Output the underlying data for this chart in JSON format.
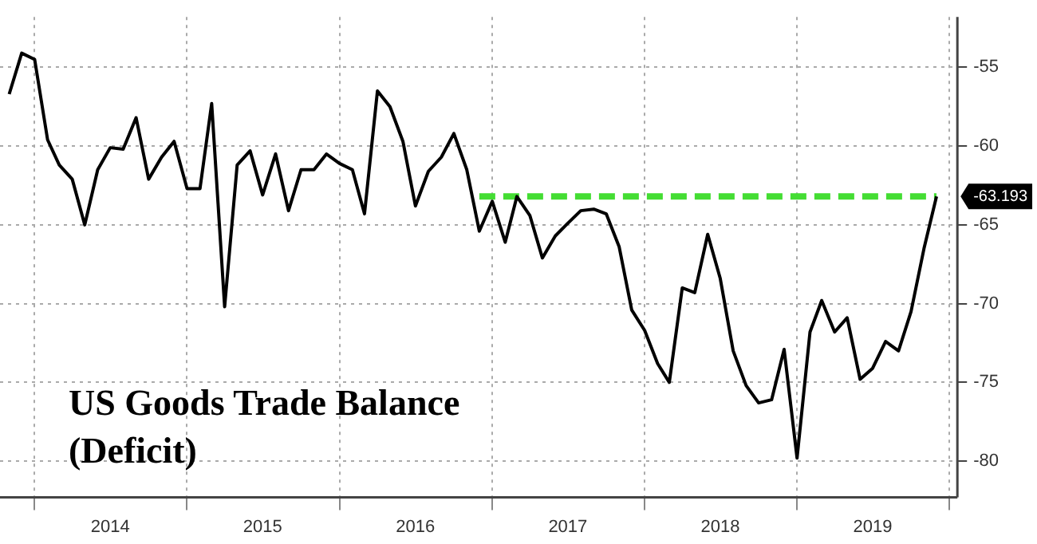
{
  "chart_data": {
    "type": "line",
    "title": "US Goods Trade Balance (Deficit)",
    "x": [
      "2013-11",
      "2013-12",
      "2014-01",
      "2014-02",
      "2014-03",
      "2014-04",
      "2014-05",
      "2014-06",
      "2014-07",
      "2014-08",
      "2014-09",
      "2014-10",
      "2014-11",
      "2014-12",
      "2015-01",
      "2015-02",
      "2015-03",
      "2015-04",
      "2015-05",
      "2015-06",
      "2015-07",
      "2015-08",
      "2015-09",
      "2015-10",
      "2015-11",
      "2015-12",
      "2016-01",
      "2016-02",
      "2016-03",
      "2016-04",
      "2016-05",
      "2016-06",
      "2016-07",
      "2016-08",
      "2016-09",
      "2016-10",
      "2016-11",
      "2016-12",
      "2017-01",
      "2017-02",
      "2017-03",
      "2017-04",
      "2017-05",
      "2017-06",
      "2017-07",
      "2017-08",
      "2017-09",
      "2017-10",
      "2017-11",
      "2017-12",
      "2018-01",
      "2018-02",
      "2018-03",
      "2018-04",
      "2018-05",
      "2018-06",
      "2018-07",
      "2018-08",
      "2018-09",
      "2018-10",
      "2018-11",
      "2018-12",
      "2019-01",
      "2019-02",
      "2019-03",
      "2019-04",
      "2019-05",
      "2019-06",
      "2019-07",
      "2019-08",
      "2019-09",
      "2019-10",
      "2019-11",
      "2019-12"
    ],
    "series": [
      {
        "color": "#000000",
        "values": [
          -56.7,
          -54.1,
          -54.5,
          -59.6,
          -61.2,
          -62.1,
          -65.0,
          -61.5,
          -60.1,
          -60.2,
          -58.2,
          -62.1,
          -60.7,
          -59.7,
          -62.7,
          -62.7,
          -57.3,
          -70.2,
          -61.2,
          -60.3,
          -63.1,
          -60.5,
          -64.1,
          -61.5,
          -61.5,
          -60.5,
          -61.1,
          -61.5,
          -64.3,
          -56.5,
          -57.5,
          -59.7,
          -63.8,
          -61.6,
          -60.7,
          -59.2,
          -61.5,
          -65.4,
          -63.5,
          -66.1,
          -63.2,
          -64.4,
          -67.1,
          -65.7,
          -64.9,
          -64.1,
          -64.0,
          -64.3,
          -66.4,
          -70.4,
          -71.7,
          -73.8,
          -75.0,
          -69.0,
          -69.3,
          -65.6,
          -68.4,
          -73.0,
          -75.2,
          -76.3,
          -76.1,
          -72.9,
          -79.8,
          -71.8,
          -69.8,
          -71.8,
          -70.9,
          -74.8,
          -74.1,
          -72.4,
          -73.0,
          -70.5,
          -66.5,
          -63.193
        ]
      },
      {
        "type": "line",
        "color": "#44dd33",
        "line_style": "dashed",
        "x": [
          "2016-12",
          "2019-12"
        ],
        "values": [
          -63.193,
          -63.193
        ]
      }
    ],
    "annotations": [
      {
        "text": "-63.193",
        "x": "2019-12",
        "y": -63.193
      }
    ],
    "xlim": [
      "2013-10-10",
      "2020-01-20"
    ],
    "xticks": [
      {
        "value": "2014-01",
        "label": null
      },
      {
        "value": "2014-07",
        "label": "2014"
      },
      {
        "value": "2015-01",
        "label": null
      },
      {
        "value": "2015-07",
        "label": "2015"
      },
      {
        "value": "2016-01",
        "label": null
      },
      {
        "value": "2016-07",
        "label": "2016"
      },
      {
        "value": "2017-01",
        "label": null
      },
      {
        "value": "2017-07",
        "label": "2017"
      },
      {
        "value": "2018-01",
        "label": null
      },
      {
        "value": "2018-07",
        "label": "2018"
      },
      {
        "value": "2019-01",
        "label": null
      },
      {
        "value": "2019-07",
        "label": "2019"
      },
      {
        "value": "2020-01",
        "label": null
      }
    ],
    "ylim": [
      -82.3,
      -51.8
    ],
    "yticks": [
      -80,
      -75,
      -70,
      -65,
      -60,
      -55
    ],
    "grid": true,
    "legend": false
  }
}
